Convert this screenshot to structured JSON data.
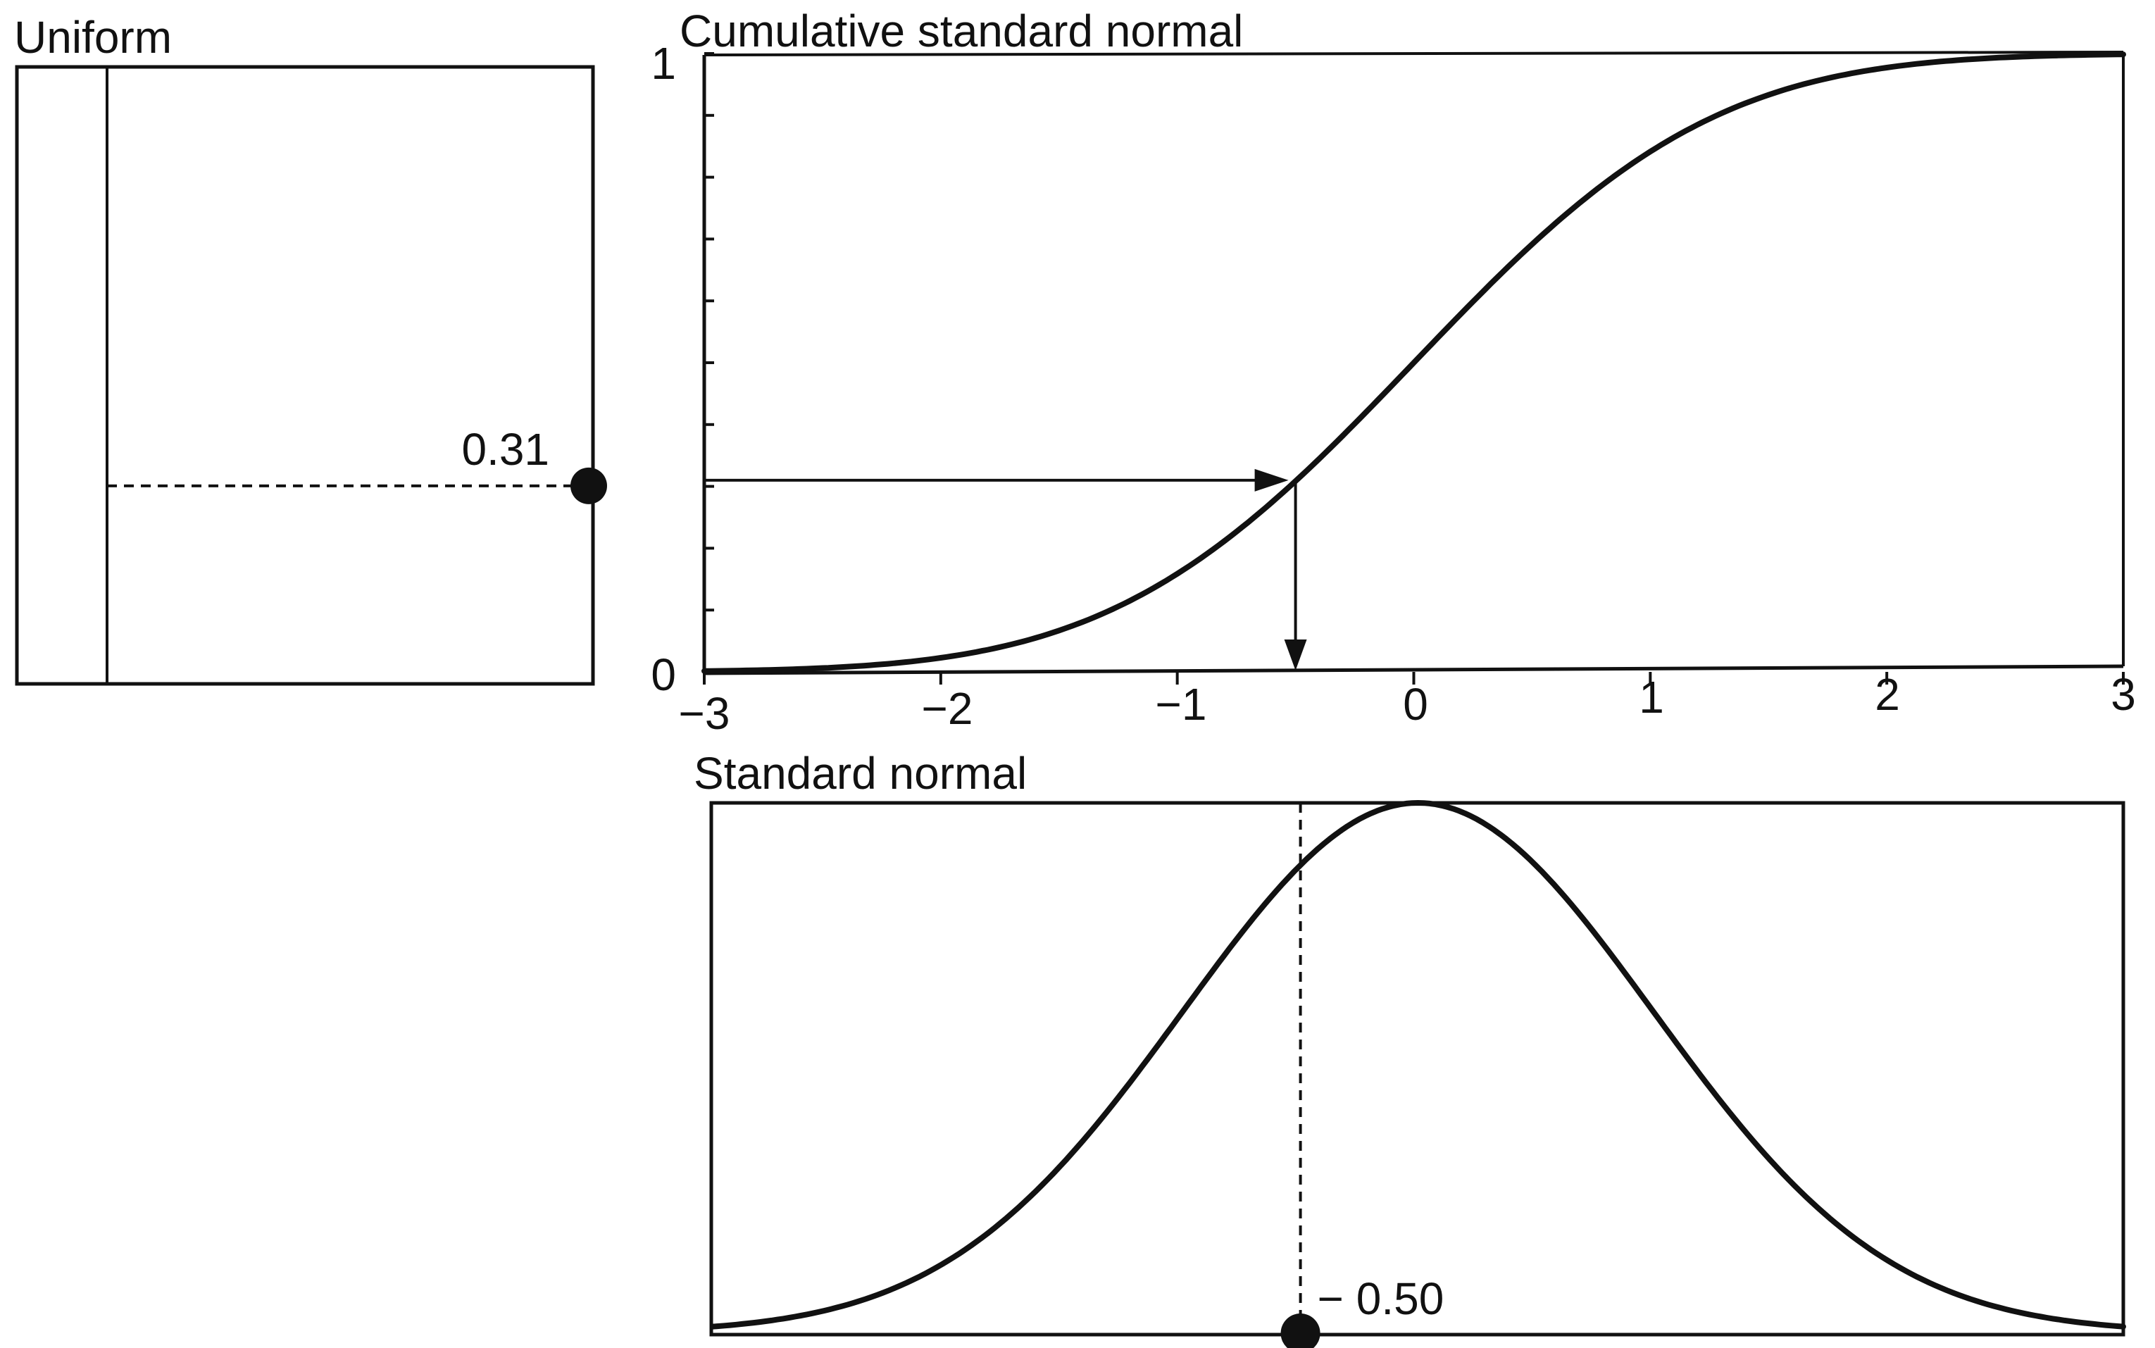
{
  "panels": {
    "uniform": {
      "title": "Uniform",
      "marked_value": 0.31,
      "marked_label": "0.31"
    },
    "cdf": {
      "title": "Cumulative standard normal",
      "y_tick_labels": [
        "0",
        "1"
      ],
      "x_tick_labels": [
        "−3",
        "−2",
        "−1",
        "0",
        "1",
        "2",
        "3"
      ]
    },
    "pdf": {
      "title": "Standard normal",
      "marked_value": -0.5,
      "marked_label": "− 0.50"
    }
  },
  "chart_data": {
    "type": "line",
    "x_range": [
      -3,
      3
    ],
    "cdf_y_range": [
      0,
      1
    ],
    "uniform_sample": 0.31,
    "normal_sample": -0.5
  },
  "colors": {
    "ink": "#111111",
    "background": "#ffffff"
  }
}
